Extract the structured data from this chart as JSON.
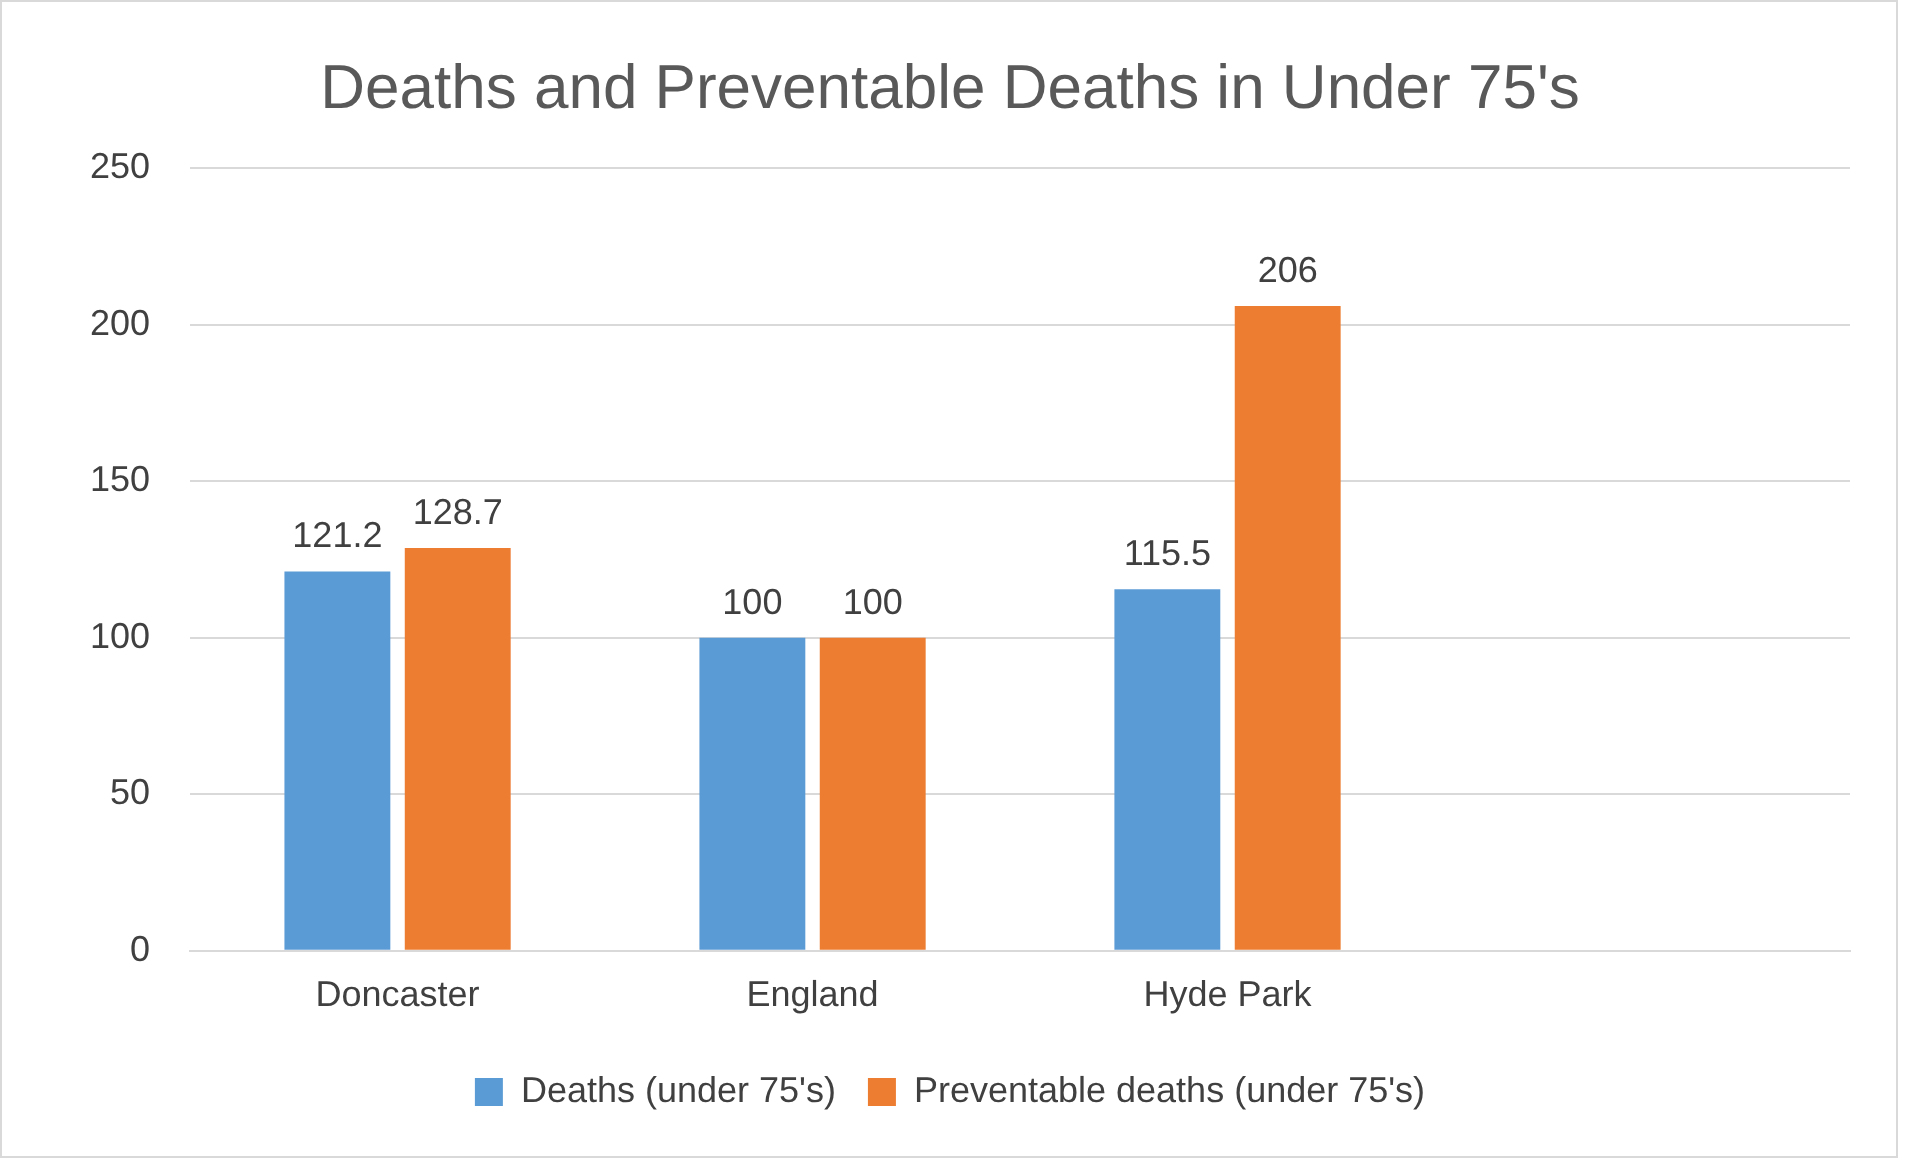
{
  "chart_data": {
    "type": "bar",
    "title": "Deaths and Preventable Deaths in Under 75's",
    "categories": [
      "Doncaster",
      "England",
      "Hyde Park",
      null
    ],
    "series": [
      {
        "name": "Deaths (under 75's)",
        "color": "#5b9bd5",
        "values": [
          121.2,
          100,
          115.5,
          null
        ]
      },
      {
        "name": "Preventable deaths (under 75's)",
        "color": "#ed7d31",
        "values": [
          128.7,
          100,
          206,
          null
        ]
      }
    ],
    "ylim": [
      0,
      250
    ],
    "yticks": [
      0,
      50,
      100,
      150,
      200,
      250
    ],
    "grid": "y",
    "legend": "bottom",
    "data_labels": true
  }
}
